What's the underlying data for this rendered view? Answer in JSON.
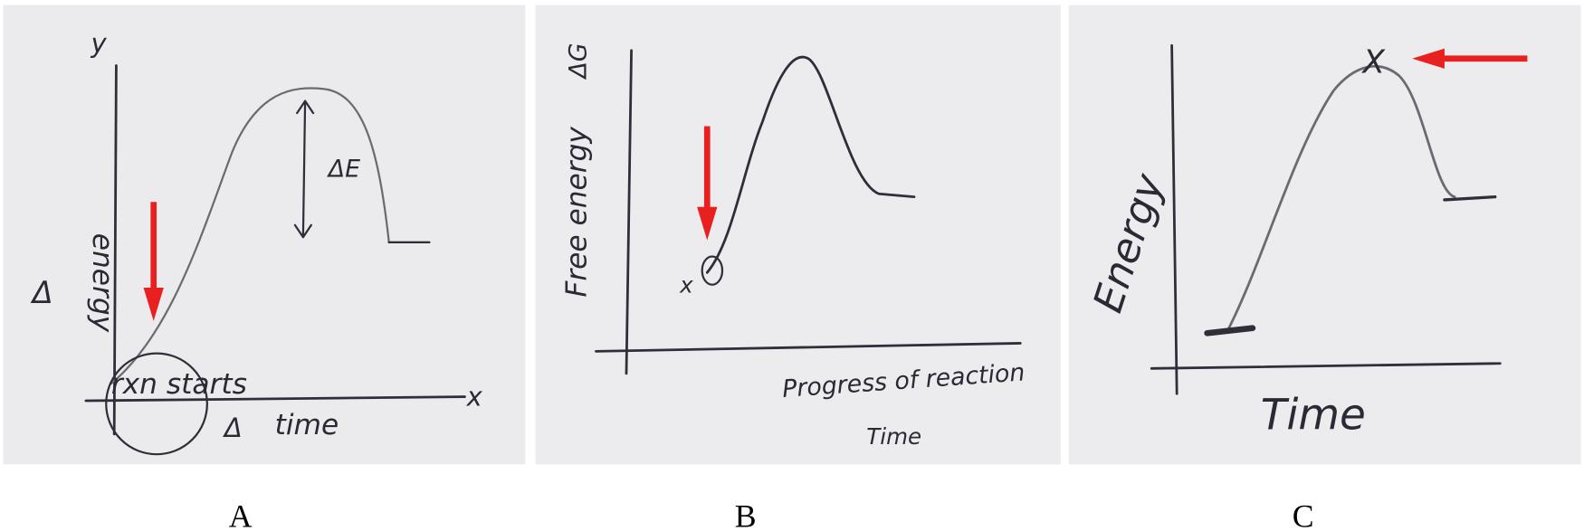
{
  "panels": [
    {
      "label": "A",
      "y_axis": "y",
      "y_label_delta": "Δ",
      "y_label": "energy",
      "start_note": "rxn starts",
      "gap_note": "ΔE",
      "x_label_delta": "Δ",
      "x_label": "time",
      "x_axis": "x"
    },
    {
      "label": "B",
      "y_label_symbol": "ΔG",
      "y_label": "Free energy",
      "start_mark": "x",
      "x_label": "Progress of reaction",
      "x_label_2": "Time"
    },
    {
      "label": "C",
      "peak_mark": "X",
      "y_label": "Energy",
      "x_label": "Time"
    }
  ]
}
